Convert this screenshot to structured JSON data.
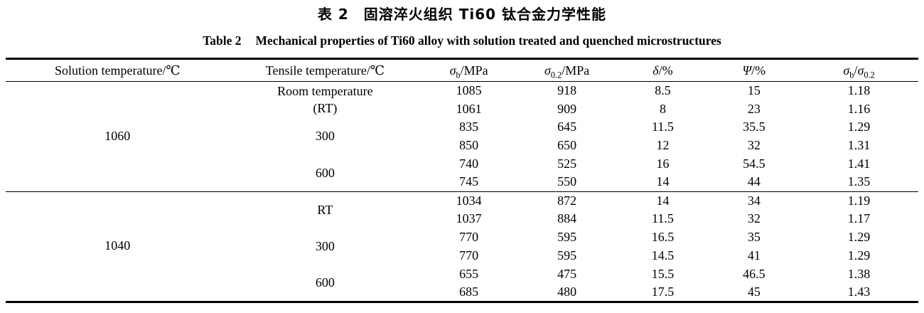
{
  "titles": {
    "chinese": "表 2　固溶淬火组织 Ti60 钛合金力学性能",
    "english_label": "Table 2",
    "english_text": "Mechanical properties of Ti60 alloy with solution treated and quenched microstructures"
  },
  "table": {
    "columns": [
      {
        "name": "solution-temperature",
        "header_segments": [
          {
            "t": "Solution temperature/℃"
          }
        ]
      },
      {
        "name": "tensile-temperature",
        "header_segments": [
          {
            "t": "Tensile temperature/℃"
          }
        ]
      },
      {
        "name": "sigma-b",
        "header_segments": [
          {
            "t": "σ",
            "i": true
          },
          {
            "t": "b",
            "sub": true
          },
          {
            "t": "/MPa"
          }
        ]
      },
      {
        "name": "sigma-0-2",
        "header_segments": [
          {
            "t": "σ",
            "i": true
          },
          {
            "t": "0.2",
            "sub": true
          },
          {
            "t": "/MPa"
          }
        ]
      },
      {
        "name": "delta",
        "header_segments": [
          {
            "t": "δ",
            "i": true
          },
          {
            "t": "/%"
          }
        ]
      },
      {
        "name": "psi",
        "header_segments": [
          {
            "t": "Ψ",
            "i": true
          },
          {
            "t": "/%"
          }
        ]
      },
      {
        "name": "strength-ratio",
        "header_segments": [
          {
            "t": "σ",
            "i": true
          },
          {
            "t": "b",
            "sub": true
          },
          {
            "t": "/"
          },
          {
            "t": "σ",
            "i": true
          },
          {
            "t": "0.2",
            "sub": true
          }
        ]
      }
    ],
    "value_cell_names": [
      "sigma-b-cell",
      "sigma-0-2-cell",
      "delta-cell",
      "psi-cell",
      "strength-ratio-cell"
    ],
    "groups": [
      {
        "solution_temperature": "1060",
        "subgroups": [
          {
            "tensile_temperature_lines": [
              "Room temperature",
              "(RT)"
            ],
            "rows": [
              [
                "1085",
                "918",
                "8.5",
                "15",
                "1.18"
              ],
              [
                "1061",
                "909",
                "8",
                "23",
                "1.16"
              ]
            ]
          },
          {
            "tensile_temperature_lines": [
              "300"
            ],
            "rows": [
              [
                "835",
                "645",
                "11.5",
                "35.5",
                "1.29"
              ],
              [
                "850",
                "650",
                "12",
                "32",
                "1.31"
              ]
            ]
          },
          {
            "tensile_temperature_lines": [
              "600"
            ],
            "rows": [
              [
                "740",
                "525",
                "16",
                "54.5",
                "1.41"
              ],
              [
                "745",
                "550",
                "14",
                "44",
                "1.35"
              ]
            ]
          }
        ]
      },
      {
        "solution_temperature": "1040",
        "subgroups": [
          {
            "tensile_temperature_lines": [
              "RT"
            ],
            "rows": [
              [
                "1034",
                "872",
                "14",
                "34",
                "1.19"
              ],
              [
                "1037",
                "884",
                "11.5",
                "32",
                "1.17"
              ]
            ]
          },
          {
            "tensile_temperature_lines": [
              "300"
            ],
            "rows": [
              [
                "770",
                "595",
                "16.5",
                "35",
                "1.29"
              ],
              [
                "770",
                "595",
                "14.5",
                "41",
                "1.29"
              ]
            ]
          },
          {
            "tensile_temperature_lines": [
              "600"
            ],
            "rows": [
              [
                "655",
                "475",
                "15.5",
                "46.5",
                "1.38"
              ],
              [
                "685",
                "480",
                "17.5",
                "45",
                "1.43"
              ]
            ]
          }
        ]
      }
    ]
  }
}
